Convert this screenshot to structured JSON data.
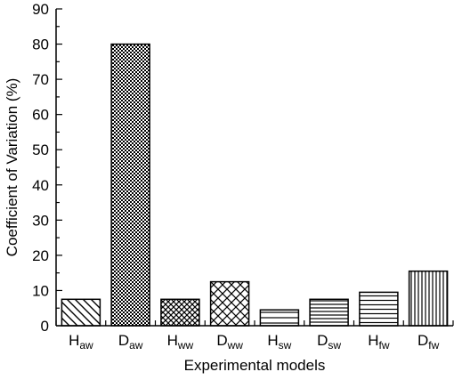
{
  "chart_data": {
    "type": "bar",
    "title": "",
    "xlabel": "Experimental models",
    "ylabel": "Coefficient of Variation (%)",
    "ylim": [
      0,
      90
    ],
    "yticks": [
      0,
      10,
      20,
      30,
      40,
      50,
      60,
      70,
      80,
      90
    ],
    "grid": false,
    "categories": [
      {
        "base": "H",
        "sub": "aw"
      },
      {
        "base": "D",
        "sub": "aw"
      },
      {
        "base": "H",
        "sub": "ww"
      },
      {
        "base": "D",
        "sub": "ww"
      },
      {
        "base": "H",
        "sub": "sw"
      },
      {
        "base": "D",
        "sub": "sw"
      },
      {
        "base": "H",
        "sub": "fw"
      },
      {
        "base": "D",
        "sub": "fw"
      }
    ],
    "values": [
      7.5,
      80,
      7.5,
      12.5,
      4.5,
      7.5,
      9.5,
      15.5
    ],
    "patterns": [
      "diag-down",
      "dots-dense",
      "crosshatch-fine",
      "crosshatch-diamond",
      "horizontal-sparse",
      "horizontal-dense",
      "horizontal-medium",
      "vertical"
    ]
  }
}
